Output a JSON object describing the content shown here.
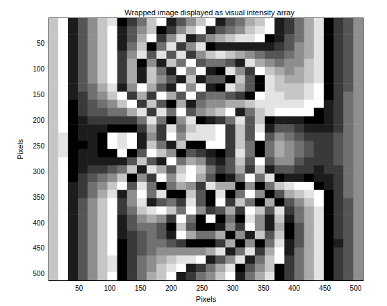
{
  "chart_data": {
    "type": "heatmap",
    "title": "Wrapped image displayed as visual intensity array",
    "x_label": "Pixels",
    "y_label": "Pixels",
    "xlim": [
      0.5,
      512.5
    ],
    "ylim": [
      512.5,
      0.5
    ],
    "xticks": [
      50,
      100,
      150,
      200,
      250,
      300,
      350,
      400,
      450,
      500
    ],
    "yticks": [
      50,
      100,
      150,
      200,
      250,
      300,
      350,
      400,
      450,
      500
    ],
    "zlim": [
      0,
      9
    ],
    "x": [
      8,
      24,
      40,
      56,
      72,
      88,
      104,
      120,
      136,
      152,
      168,
      184,
      200,
      216,
      232,
      248,
      264,
      280,
      296,
      312,
      328,
      344,
      360,
      376,
      392,
      408,
      424,
      440,
      456,
      472,
      488,
      504
    ],
    "y": [
      8,
      24,
      40,
      56,
      72,
      88,
      104,
      120,
      136,
      152,
      168,
      184,
      200,
      216,
      232,
      248,
      264,
      280,
      296,
      312,
      328,
      344,
      360,
      376,
      392,
      408,
      424,
      440,
      456,
      472,
      488,
      504
    ],
    "cells": [
      [
        7,
        9,
        1,
        3,
        5,
        7,
        8,
        0,
        2,
        4,
        7,
        9,
        1,
        3,
        5,
        7,
        9,
        1,
        3,
        4,
        6,
        7,
        9,
        1,
        2,
        4,
        6,
        8,
        0,
        2,
        3,
        5
      ],
      [
        7,
        9,
        1,
        3,
        5,
        7,
        9,
        1,
        3,
        5,
        7,
        0,
        2,
        5,
        7,
        9,
        1,
        3,
        4,
        5,
        7,
        8,
        9,
        1,
        2,
        4,
        6,
        8,
        0,
        2,
        3,
        5
      ],
      [
        7,
        9,
        1,
        3,
        5,
        7,
        9,
        1,
        3,
        6,
        9,
        2,
        5,
        8,
        1,
        3,
        5,
        6,
        7,
        8,
        8,
        9,
        0,
        1,
        3,
        4,
        6,
        8,
        0,
        2,
        3,
        5
      ],
      [
        7,
        9,
        1,
        3,
        5,
        7,
        9,
        1,
        4,
        7,
        0,
        4,
        8,
        2,
        5,
        8,
        0,
        1,
        1,
        1,
        1,
        1,
        1,
        2,
        3,
        5,
        6,
        8,
        0,
        2,
        3,
        5
      ],
      [
        7,
        9,
        1,
        3,
        5,
        7,
        9,
        2,
        5,
        8,
        3,
        8,
        3,
        8,
        2,
        5,
        7,
        8,
        7,
        6,
        5,
        4,
        3,
        3,
        4,
        5,
        6,
        8,
        0,
        2,
        3,
        5
      ],
      [
        7,
        9,
        1,
        3,
        5,
        7,
        9,
        2,
        6,
        0,
        5,
        1,
        7,
        4,
        9,
        3,
        4,
        4,
        3,
        1,
        8,
        6,
        5,
        4,
        5,
        5,
        7,
        8,
        0,
        2,
        3,
        5
      ],
      [
        7,
        9,
        1,
        3,
        5,
        7,
        9,
        2,
        6,
        1,
        7,
        4,
        1,
        9,
        5,
        9,
        1,
        0,
        8,
        5,
        2,
        9,
        7,
        6,
        5,
        6,
        7,
        8,
        0,
        2,
        3,
        5
      ],
      [
        7,
        9,
        1,
        3,
        5,
        7,
        9,
        2,
        6,
        1,
        7,
        5,
        3,
        1,
        7,
        1,
        3,
        3,
        0,
        7,
        3,
        0,
        8,
        7,
        6,
        6,
        7,
        8,
        0,
        2,
        3,
        5
      ],
      [
        7,
        9,
        1,
        3,
        4,
        6,
        8,
        1,
        5,
        9,
        6,
        3,
        1,
        9,
        5,
        9,
        1,
        0,
        8,
        6,
        3,
        0,
        8,
        7,
        7,
        7,
        8,
        9,
        0,
        2,
        3,
        5
      ],
      [
        7,
        9,
        1,
        2,
        4,
        5,
        7,
        9,
        2,
        6,
        2,
        9,
        6,
        3,
        9,
        3,
        4,
        4,
        3,
        2,
        0,
        9,
        8,
        8,
        7,
        7,
        8,
        9,
        0,
        2,
        4,
        5
      ],
      [
        7,
        9,
        0,
        2,
        3,
        4,
        5,
        7,
        9,
        2,
        7,
        3,
        0,
        6,
        1,
        4,
        5,
        5,
        6,
        6,
        7,
        8,
        8,
        8,
        8,
        8,
        9,
        9,
        1,
        2,
        4,
        5
      ],
      [
        7,
        9,
        0,
        2,
        3,
        3,
        4,
        4,
        6,
        8,
        2,
        8,
        4,
        9,
        3,
        5,
        6,
        7,
        9,
        1,
        4,
        7,
        8,
        9,
        9,
        9,
        9,
        0,
        1,
        2,
        4,
        5
      ],
      [
        7,
        9,
        0,
        1,
        2,
        2,
        2,
        2,
        2,
        4,
        8,
        4,
        0,
        5,
        8,
        0,
        1,
        2,
        4,
        8,
        3,
        7,
        0,
        1,
        1,
        1,
        0,
        0,
        1,
        2,
        4,
        5
      ],
      [
        7,
        9,
        0,
        1,
        1,
        1,
        0,
        0,
        0,
        2,
        6,
        2,
        8,
        4,
        7,
        8,
        8,
        9,
        2,
        7,
        3,
        8,
        1,
        3,
        3,
        2,
        1,
        1,
        1,
        2,
        4,
        5
      ],
      [
        7,
        8,
        0,
        1,
        1,
        0,
        9,
        8,
        9,
        1,
        5,
        2,
        9,
        5,
        8,
        8,
        8,
        9,
        2,
        7,
        3,
        9,
        3,
        5,
        4,
        3,
        2,
        2,
        2,
        3,
        4,
        5
      ],
      [
        7,
        8,
        0,
        0,
        1,
        0,
        9,
        8,
        9,
        1,
        7,
        4,
        1,
        7,
        0,
        0,
        9,
        9,
        2,
        7,
        4,
        0,
        4,
        6,
        5,
        4,
        3,
        2,
        2,
        3,
        4,
        5
      ],
      [
        7,
        8,
        0,
        1,
        1,
        0,
        0,
        9,
        0,
        3,
        9,
        7,
        5,
        0,
        3,
        2,
        1,
        0,
        2,
        8,
        4,
        0,
        4,
        6,
        5,
        4,
        3,
        2,
        2,
        3,
        4,
        5
      ],
      [
        7,
        9,
        0,
        1,
        1,
        1,
        1,
        1,
        3,
        7,
        3,
        1,
        9,
        4,
        6,
        5,
        2,
        1,
        3,
        7,
        3,
        9,
        3,
        5,
        5,
        3,
        2,
        2,
        2,
        3,
        4,
        5
      ],
      [
        7,
        9,
        0,
        1,
        2,
        2,
        3,
        4,
        7,
        1,
        8,
        6,
        3,
        7,
        9,
        7,
        4,
        2,
        3,
        6,
        2,
        7,
        1,
        3,
        3,
        2,
        2,
        1,
        2,
        2,
        4,
        5
      ],
      [
        7,
        9,
        0,
        2,
        3,
        4,
        5,
        7,
        0,
        5,
        2,
        9,
        5,
        8,
        9,
        6,
        3,
        0,
        1,
        4,
        9,
        4,
        8,
        0,
        1,
        1,
        0,
        1,
        1,
        2,
        4,
        5
      ],
      [
        7,
        9,
        1,
        2,
        4,
        5,
        7,
        9,
        3,
        8,
        4,
        0,
        4,
        6,
        5,
        2,
        8,
        6,
        6,
        0,
        5,
        0,
        4,
        7,
        8,
        9,
        9,
        0,
        1,
        2,
        4,
        5
      ],
      [
        7,
        9,
        1,
        2,
        4,
        6,
        8,
        1,
        5,
        9,
        4,
        8,
        0,
        0,
        7,
        3,
        0,
        8,
        0,
        4,
        9,
        5,
        0,
        3,
        6,
        7,
        8,
        9,
        0,
        2,
        4,
        5
      ],
      [
        7,
        9,
        1,
        3,
        5,
        7,
        9,
        2,
        5,
        8,
        1,
        3,
        4,
        2,
        8,
        3,
        0,
        9,
        2,
        7,
        4,
        0,
        6,
        0,
        3,
        5,
        7,
        9,
        0,
        2,
        3,
        5
      ],
      [
        7,
        9,
        1,
        3,
        5,
        7,
        9,
        2,
        4,
        7,
        8,
        9,
        7,
        4,
        9,
        5,
        2,
        3,
        6,
        2,
        9,
        7,
        3,
        8,
        2,
        4,
        6,
        8,
        0,
        2,
        3,
        5
      ],
      [
        7,
        9,
        1,
        3,
        5,
        7,
        9,
        1,
        3,
        5,
        6,
        5,
        2,
        9,
        4,
        0,
        9,
        0,
        4,
        0,
        8,
        5,
        1,
        7,
        1,
        4,
        6,
        8,
        0,
        2,
        3,
        5
      ],
      [
        7,
        9,
        1,
        3,
        5,
        7,
        9,
        1,
        3,
        4,
        4,
        3,
        0,
        7,
        3,
        0,
        0,
        1,
        5,
        2,
        9,
        5,
        1,
        6,
        0,
        3,
        6,
        8,
        0,
        2,
        3,
        5
      ],
      [
        7,
        9,
        1,
        3,
        5,
        7,
        9,
        1,
        2,
        3,
        4,
        3,
        1,
        9,
        6,
        4,
        4,
        6,
        0,
        5,
        1,
        7,
        3,
        7,
        0,
        3,
        6,
        8,
        0,
        2,
        3,
        5
      ],
      [
        7,
        9,
        1,
        3,
        5,
        7,
        9,
        0,
        2,
        3,
        4,
        4,
        3,
        2,
        0,
        0,
        0,
        2,
        6,
        0,
        5,
        0,
        4,
        8,
        1,
        3,
        6,
        8,
        0,
        1,
        3,
        5
      ],
      [
        7,
        9,
        1,
        3,
        5,
        7,
        9,
        0,
        2,
        3,
        4,
        5,
        5,
        5,
        5,
        5,
        6,
        8,
        1,
        4,
        8,
        2,
        6,
        9,
        1,
        4,
        6,
        8,
        0,
        2,
        3,
        5
      ],
      [
        7,
        9,
        1,
        3,
        5,
        7,
        8,
        0,
        2,
        4,
        5,
        6,
        7,
        8,
        8,
        9,
        1,
        3,
        5,
        8,
        1,
        4,
        7,
        9,
        2,
        4,
        6,
        8,
        0,
        2,
        3,
        5
      ],
      [
        7,
        9,
        1,
        3,
        5,
        7,
        8,
        0,
        2,
        4,
        5,
        7,
        8,
        9,
        1,
        2,
        4,
        6,
        8,
        0,
        3,
        5,
        7,
        0,
        2,
        4,
        6,
        8,
        0,
        2,
        3,
        5
      ],
      [
        7,
        9,
        1,
        3,
        5,
        7,
        9,
        0,
        2,
        4,
        6,
        7,
        9,
        1,
        2,
        4,
        5,
        7,
        9,
        1,
        4,
        6,
        8,
        0,
        2,
        4,
        6,
        8,
        0,
        2,
        3,
        5
      ]
    ]
  }
}
